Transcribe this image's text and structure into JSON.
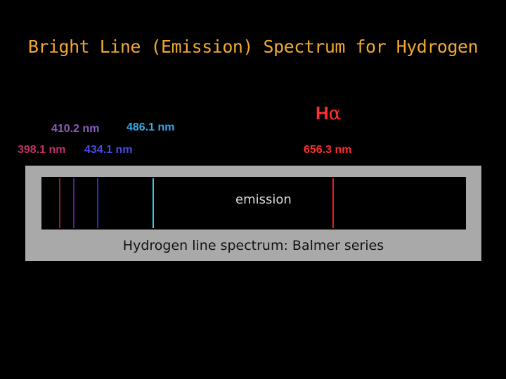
{
  "title": "Bright Line (Emission) Spectrum for Hydrogen",
  "wavelength_labels": {
    "nm410": "410.2 nm",
    "nm486": "486.1 nm",
    "nm398": "398.1 nm",
    "nm434": "434.1 nm",
    "nm656": "656.3 nm"
  },
  "h_alpha": {
    "letter": "H",
    "subscript": "α"
  },
  "spectrum": {
    "strip_label": "emission",
    "caption": "Hydrogen line spectrum: Balmer series",
    "lines": [
      {
        "name": "spectral-line-1",
        "color": "#8b1a4a"
      },
      {
        "name": "spectral-line-2",
        "color": "#5a1e8c"
      },
      {
        "name": "spectral-line-3",
        "color": "#2a2ad0"
      },
      {
        "name": "spectral-line-4",
        "color": "#3fc8e0"
      },
      {
        "name": "spectral-line-5",
        "color": "#e02020"
      }
    ]
  },
  "colors": {
    "background": "#000000",
    "title": "#f0a830",
    "label_410": "#8a5ab8",
    "label_486": "#38a8e8",
    "label_398": "#c0306a",
    "label_434": "#4848e0",
    "label_656": "#ff2f2f"
  }
}
